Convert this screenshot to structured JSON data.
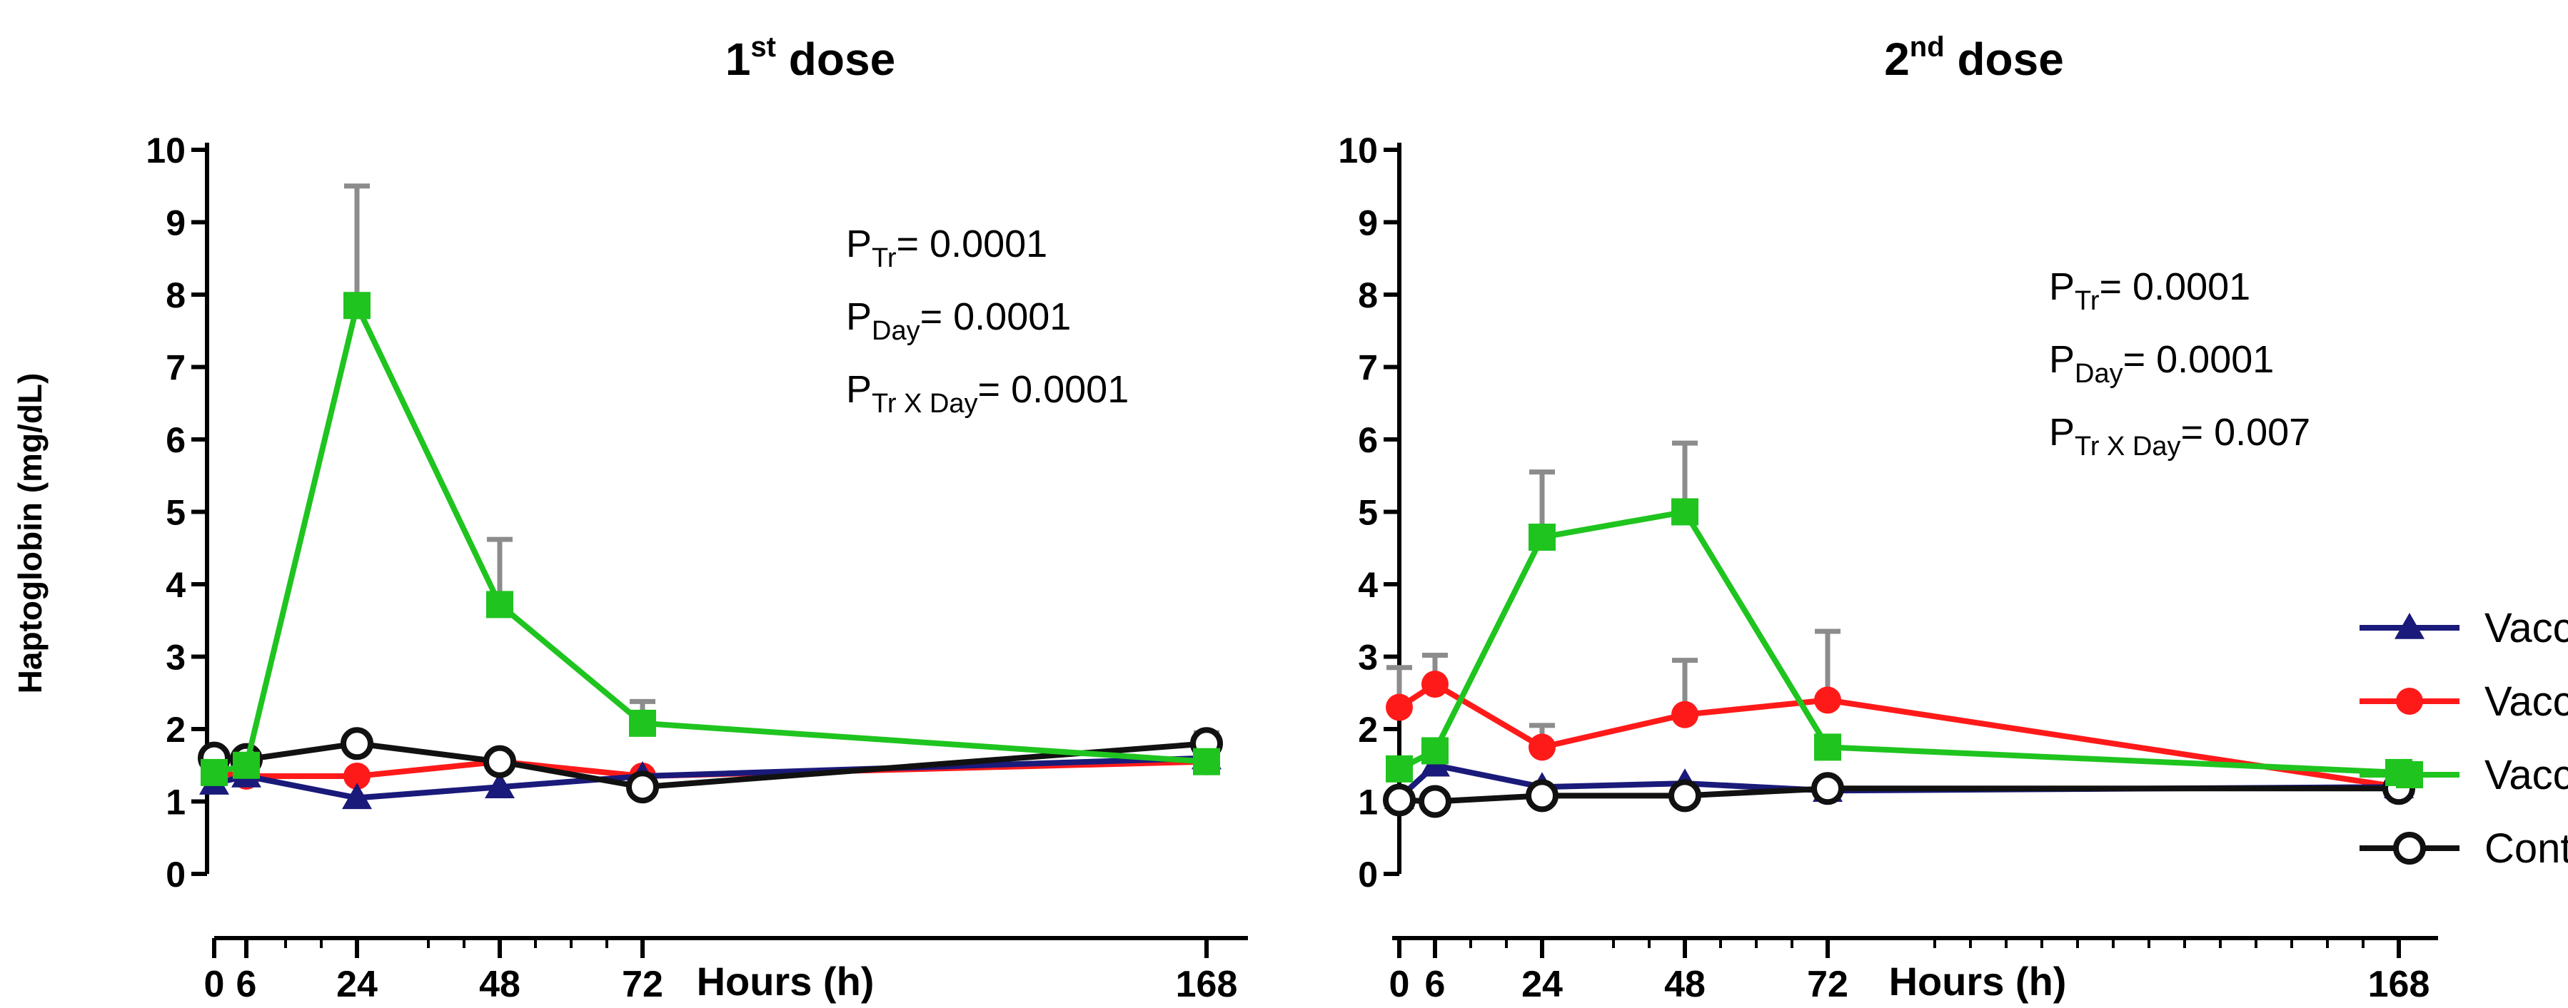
{
  "chart_data": [
    {
      "type": "line",
      "title": "1st dose",
      "title_main": "1",
      "title_sup": "st",
      "title_rest": " dose",
      "xlabel": "Hours (h)",
      "ylabel": "Haptoglobin (mg/dL)",
      "x_ticks": [
        0,
        6,
        24,
        48,
        72,
        168
      ],
      "y_ticks": [
        0,
        1,
        2,
        3,
        4,
        5,
        6,
        7,
        8,
        9,
        10
      ],
      "ylim": [
        0,
        10
      ],
      "x": [
        0,
        6,
        24,
        48,
        72,
        168
      ],
      "series": [
        {
          "name": "Vaccine A",
          "values": [
            1.25,
            1.35,
            1.05,
            1.2,
            1.35,
            1.6
          ],
          "errors": [
            0,
            0,
            0,
            0,
            0,
            0
          ]
        },
        {
          "name": "Vaccine B",
          "values": [
            1.4,
            1.35,
            1.35,
            1.55,
            1.35,
            1.55
          ],
          "errors": [
            0,
            0,
            0,
            0.1,
            0,
            0
          ]
        },
        {
          "name": "Vaccine C",
          "values": [
            1.4,
            1.5,
            7.85,
            3.72,
            2.08,
            1.55
          ],
          "errors": [
            0,
            0,
            1.65,
            0.9,
            0.3,
            0
          ]
        },
        {
          "name": "Control",
          "values": [
            1.6,
            1.58,
            1.8,
            1.55,
            1.2,
            1.8
          ],
          "errors": [
            0,
            0,
            0,
            0,
            0,
            0.15
          ]
        }
      ],
      "stats": [
        {
          "label": "P",
          "sub": "Tr",
          "value": "= 0.0001"
        },
        {
          "label": "P",
          "sub": "Day",
          "value": "= 0.0001"
        },
        {
          "label": "P",
          "sub": "Tr X Day",
          "value": "= 0.0001"
        }
      ]
    },
    {
      "type": "line",
      "title": "2nd dose",
      "title_main": "2",
      "title_sup": "nd",
      "title_rest": " dose",
      "xlabel": "Hours (h)",
      "ylabel": "",
      "x_ticks": [
        0,
        6,
        24,
        48,
        72,
        168
      ],
      "y_ticks": [
        0,
        1,
        2,
        3,
        4,
        5,
        6,
        7,
        8,
        9,
        10
      ],
      "ylim": [
        0,
        10
      ],
      "x": [
        0,
        6,
        24,
        48,
        72,
        168
      ],
      "series": [
        {
          "name": "Vaccine A",
          "values": [
            1.05,
            1.5,
            1.2,
            1.25,
            1.15,
            1.2
          ],
          "errors": [
            0,
            0,
            0,
            0,
            0,
            0
          ]
        },
        {
          "name": "Vaccine B",
          "values": [
            2.3,
            2.62,
            1.75,
            2.2,
            2.4,
            1.2
          ],
          "errors": [
            0.55,
            0.4,
            0.3,
            0.75,
            0.95,
            0
          ]
        },
        {
          "name": "Vaccine C",
          "values": [
            1.45,
            1.7,
            4.65,
            5.0,
            1.75,
            1.4
          ],
          "errors": [
            0,
            0,
            0.9,
            0.95,
            0,
            0
          ]
        },
        {
          "name": "Control",
          "values": [
            1.02,
            1.0,
            1.08,
            1.08,
            1.18,
            1.18
          ],
          "errors": [
            0,
            0,
            0,
            0,
            0,
            0
          ]
        }
      ],
      "stats": [
        {
          "label": "P",
          "sub": "Tr",
          "value": "= 0.0001"
        },
        {
          "label": "P",
          "sub": "Day",
          "value": "= 0.0001"
        },
        {
          "label": "P",
          "sub": "Tr X Day",
          "value": "= 0.007"
        }
      ]
    }
  ],
  "legend": [
    {
      "name": "Vaccine A",
      "marker": "triangle",
      "color": "#1a1a7a"
    },
    {
      "name": "Vaccine B",
      "marker": "circle",
      "color": "#ff1a1a"
    },
    {
      "name": "Vaccine C",
      "marker": "square",
      "color": "#1fc41f"
    },
    {
      "name": "Control",
      "marker": "open-circle",
      "color": "#111111"
    }
  ],
  "colors": {
    "Vaccine A": "#1a1a7a",
    "Vaccine B": "#ff1a1a",
    "Vaccine C": "#1fc41f",
    "Control": "#111111",
    "error_bar": "#8c8c8c",
    "axis": "#000000"
  }
}
